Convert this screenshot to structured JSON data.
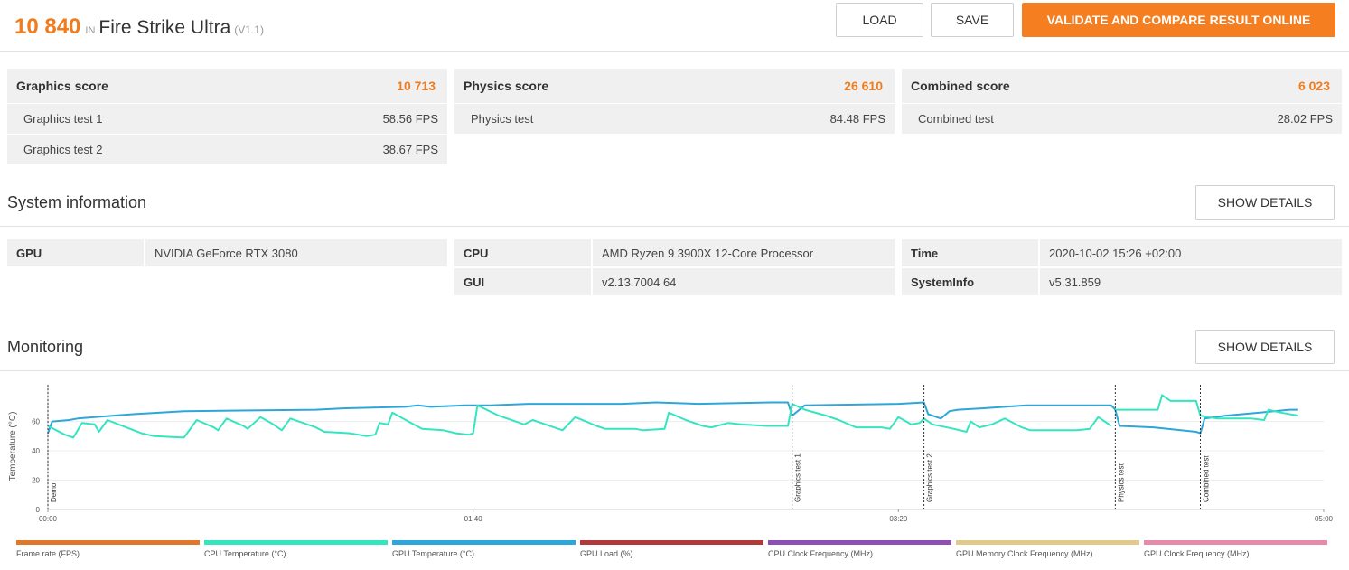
{
  "header": {
    "score": "10 840",
    "in_text": "IN",
    "benchmark": "Fire Strike Ultra",
    "version": "(V1.1)",
    "load_label": "LOAD",
    "save_label": "SAVE",
    "validate_label": "VALIDATE AND COMPARE RESULT ONLINE"
  },
  "scores": [
    {
      "label": "Graphics score",
      "value": "10 713",
      "rows": [
        {
          "name": "Graphics test 1",
          "value": "58.56 FPS"
        },
        {
          "name": "Graphics test 2",
          "value": "38.67 FPS"
        }
      ]
    },
    {
      "label": "Physics score",
      "value": "26 610",
      "rows": [
        {
          "name": "Physics test",
          "value": "84.48 FPS"
        }
      ]
    },
    {
      "label": "Combined score",
      "value": "6 023",
      "rows": [
        {
          "name": "Combined test",
          "value": "28.02 FPS"
        }
      ]
    }
  ],
  "system": {
    "title": "System information",
    "details_label": "SHOW DETAILS",
    "gpu_key": "GPU",
    "gpu_val": "NVIDIA GeForce RTX 3080",
    "cpu_key": "CPU",
    "cpu_val": "AMD Ryzen 9 3900X 12-Core Processor",
    "gui_key": "GUI",
    "gui_val": "v2.13.7004 64",
    "time_key": "Time",
    "time_val": "2020-10-02 15:26 +02:00",
    "sysinfo_key": "SystemInfo",
    "sysinfo_val": "v5.31.859"
  },
  "monitoring": {
    "title": "Monitoring",
    "details_label": "SHOW DETAILS"
  },
  "chart_data": {
    "type": "line",
    "ylabel": "Temperature (°C)",
    "ylim": [
      0,
      85
    ],
    "y_ticks": [
      0,
      20,
      40,
      60
    ],
    "x_ticks": [
      "00:00",
      "01:40",
      "03:20",
      "05:00"
    ],
    "xlim_seconds": [
      0,
      300
    ],
    "markers": [
      {
        "label": "Demo",
        "t": 0
      },
      {
        "label": "Graphics test 1",
        "t": 175
      },
      {
        "label": "Graphics test 2",
        "t": 206
      },
      {
        "label": "Physics test",
        "t": 251
      },
      {
        "label": "Combined test",
        "t": 271
      }
    ],
    "series": [
      {
        "name": "GPU Temperature (°C)",
        "color": "#2ea6d9",
        "points": [
          [
            0,
            52
          ],
          [
            1,
            60
          ],
          [
            5,
            61
          ],
          [
            7,
            62
          ],
          [
            11,
            63
          ],
          [
            20,
            65
          ],
          [
            32,
            67
          ],
          [
            63,
            68
          ],
          [
            70,
            69
          ],
          [
            84,
            70
          ],
          [
            87,
            71
          ],
          [
            90,
            70
          ],
          [
            98,
            71
          ],
          [
            104,
            71
          ],
          [
            113,
            72
          ],
          [
            135,
            72
          ],
          [
            143,
            73
          ],
          [
            153,
            72
          ],
          [
            170,
            73
          ],
          [
            174,
            73
          ],
          [
            175,
            64
          ],
          [
            178,
            71
          ],
          [
            200,
            72
          ],
          [
            206,
            73
          ],
          [
            207,
            65
          ],
          [
            210,
            62
          ],
          [
            212,
            67
          ],
          [
            214,
            68
          ],
          [
            220,
            69
          ],
          [
            230,
            71
          ],
          [
            250,
            71
          ],
          [
            251,
            68
          ],
          [
            252,
            57
          ],
          [
            260,
            56
          ],
          [
            270,
            53
          ],
          [
            271,
            52
          ],
          [
            272,
            62
          ],
          [
            277,
            64
          ],
          [
            285,
            66
          ],
          [
            292,
            68
          ],
          [
            294,
            68
          ]
        ]
      },
      {
        "name": "CPU Temperature (°C)",
        "color": "#34e5c0",
        "points": [
          [
            0,
            57
          ],
          [
            4,
            51
          ],
          [
            6,
            49
          ],
          [
            8,
            59
          ],
          [
            11,
            58
          ],
          [
            12,
            53
          ],
          [
            14,
            61
          ],
          [
            22,
            52
          ],
          [
            25,
            50
          ],
          [
            32,
            49
          ],
          [
            35,
            61
          ],
          [
            39,
            56
          ],
          [
            40,
            54
          ],
          [
            42,
            62
          ],
          [
            46,
            57
          ],
          [
            47,
            55
          ],
          [
            50,
            63
          ],
          [
            53,
            58
          ],
          [
            55,
            54
          ],
          [
            57,
            62
          ],
          [
            63,
            56
          ],
          [
            65,
            53
          ],
          [
            71,
            52
          ],
          [
            75,
            50
          ],
          [
            77,
            51
          ],
          [
            78,
            59
          ],
          [
            80,
            58
          ],
          [
            81,
            66
          ],
          [
            86,
            58
          ],
          [
            88,
            55
          ],
          [
            93,
            54
          ],
          [
            96,
            52
          ],
          [
            99,
            51
          ],
          [
            100,
            52
          ],
          [
            101,
            71
          ],
          [
            106,
            64
          ],
          [
            112,
            58
          ],
          [
            114,
            61
          ],
          [
            119,
            56
          ],
          [
            121,
            54
          ],
          [
            124,
            63
          ],
          [
            129,
            57
          ],
          [
            131,
            55
          ],
          [
            138,
            55
          ],
          [
            140,
            54
          ],
          [
            145,
            55
          ],
          [
            146,
            66
          ],
          [
            150,
            61
          ],
          [
            154,
            57
          ],
          [
            156,
            56
          ],
          [
            160,
            59
          ],
          [
            163,
            58
          ],
          [
            169,
            57
          ],
          [
            174,
            57
          ],
          [
            175,
            72
          ],
          [
            178,
            68
          ],
          [
            183,
            64
          ],
          [
            186,
            61
          ],
          [
            190,
            56
          ],
          [
            196,
            56
          ],
          [
            198,
            55
          ],
          [
            200,
            63
          ],
          [
            203,
            58
          ],
          [
            205,
            59
          ],
          [
            206,
            62
          ],
          [
            208,
            58
          ],
          [
            213,
            55
          ],
          [
            216,
            53
          ],
          [
            217,
            60
          ],
          [
            219,
            56
          ],
          [
            222,
            58
          ],
          [
            225,
            62
          ],
          [
            229,
            56
          ],
          [
            231,
            54
          ],
          [
            236,
            54
          ],
          [
            242,
            54
          ],
          [
            245,
            55
          ],
          [
            247,
            63
          ],
          [
            249,
            59
          ],
          [
            250,
            57
          ]
        ]
      },
      {
        "name": "CPU Temperature (°C) - physics/combined",
        "color": "#34e5c0",
        "points": [
          [
            251,
            68
          ],
          [
            261,
            68
          ],
          [
            262,
            78
          ],
          [
            264,
            74
          ],
          [
            270,
            74
          ],
          [
            271,
            64
          ],
          [
            275,
            62
          ],
          [
            283,
            62
          ],
          [
            286,
            61
          ],
          [
            287,
            68
          ],
          [
            290,
            66
          ],
          [
            294,
            64
          ]
        ]
      }
    ]
  },
  "legend": [
    {
      "label": "Frame rate (FPS)",
      "color": "#e0782c"
    },
    {
      "label": "CPU Temperature (°C)",
      "color": "#34e5c0"
    },
    {
      "label": "GPU Temperature (°C)",
      "color": "#2ea6d9"
    },
    {
      "label": "GPU Load (%)",
      "color": "#b03a3a"
    },
    {
      "label": "CPU Clock Frequency (MHz)",
      "color": "#8e4fb5"
    },
    {
      "label": "GPU Memory Clock Frequency (MHz)",
      "color": "#e0c98a"
    },
    {
      "label": "GPU Clock Frequency (MHz)",
      "color": "#e58aa8"
    }
  ]
}
